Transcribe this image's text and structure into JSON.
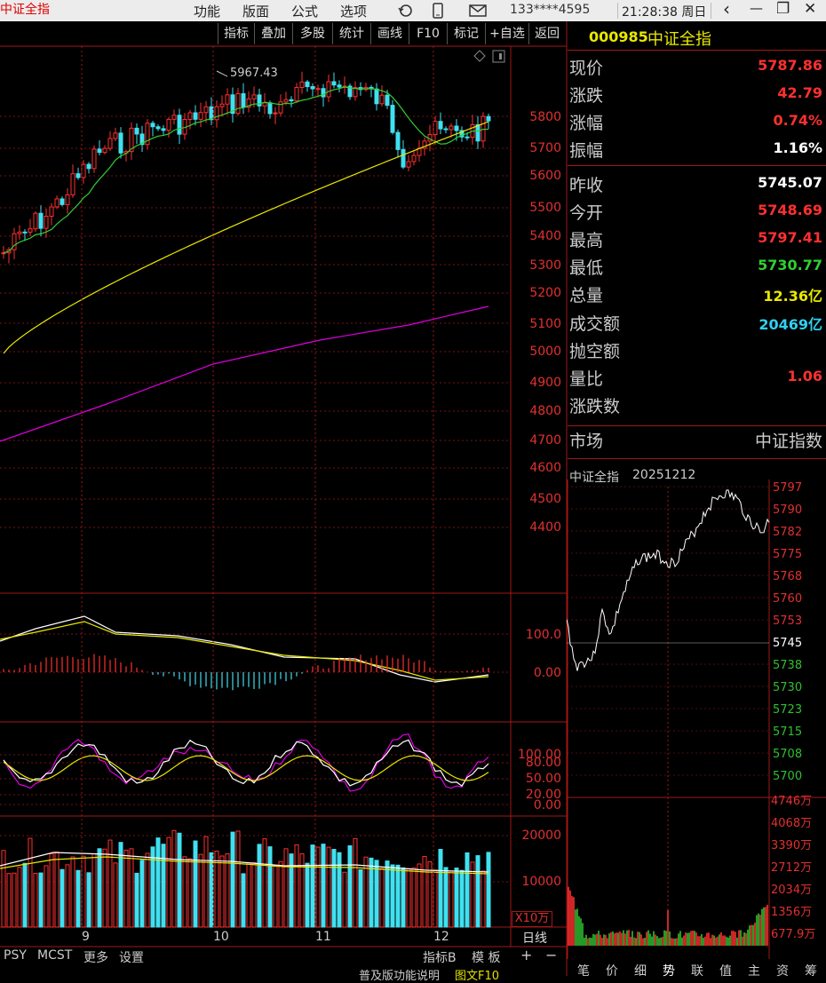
{
  "app": {
    "title": "中证全指",
    "menu": [
      "功能",
      "版面",
      "公式",
      "选项"
    ],
    "account": "133****4595",
    "clock": "21:28:38 周日",
    "window_controls": {
      "back": "‹",
      "min": "—",
      "restore": "❐",
      "close": "✕"
    }
  },
  "toolbar": [
    "指标",
    "叠加",
    "多股",
    "统计",
    "画线",
    "F10",
    "标记",
    "+自选",
    "返回"
  ],
  "chart": {
    "high_marker": "5967.43",
    "price_axis": [
      "5800",
      "5700",
      "5600",
      "5500",
      "5400",
      "5300",
      "5200",
      "5100",
      "5000",
      "4900",
      "4800",
      "4700",
      "4600",
      "4500",
      "4400"
    ],
    "macd_axis": [
      "100.0",
      "0.00"
    ],
    "kdj_axis": [
      "100.00",
      "80.00",
      "50.00",
      "20.00",
      "0.00"
    ],
    "vol_axis": [
      "20000",
      "10000"
    ],
    "vol_unit": "X10万",
    "period": "日线",
    "months": [
      "9",
      "10",
      "11",
      "12"
    ]
  },
  "quote": {
    "code": "000985",
    "name": "中证全指",
    "rows": [
      {
        "label": "现价",
        "value": "5787.86",
        "color": "#ff3030"
      },
      {
        "label": "涨跌",
        "value": "42.79",
        "color": "#ff3030"
      },
      {
        "label": "涨幅",
        "value": "0.74%",
        "color": "#ff3030"
      },
      {
        "label": "振幅",
        "value": "1.16%",
        "color": "#ffffff"
      },
      {
        "label": "昨收",
        "value": "5745.07",
        "color": "#ffffff"
      },
      {
        "label": "今开",
        "value": "5748.69",
        "color": "#ff3030"
      },
      {
        "label": "最高",
        "value": "5797.41",
        "color": "#ff3030"
      },
      {
        "label": "最低",
        "value": "5730.77",
        "color": "#30d030"
      },
      {
        "label": "总量",
        "value": "12.36亿",
        "color": "#e8e800"
      },
      {
        "label": "成交额",
        "value": "20469亿",
        "color": "#30d0f0"
      },
      {
        "label": "抛空额",
        "value": "",
        "color": "#ffffff"
      },
      {
        "label": "量比",
        "value": "1.06",
        "color": "#ff3030"
      },
      {
        "label": "涨跌数",
        "value": "",
        "color": "#ffffff"
      }
    ],
    "market_label": "市场",
    "market_value": "中证指数"
  },
  "intraday": {
    "title": "中证全指",
    "date": "20251212",
    "price_axis": [
      {
        "v": "5797",
        "c": "r"
      },
      {
        "v": "5790",
        "c": "r"
      },
      {
        "v": "5782",
        "c": "r"
      },
      {
        "v": "5775",
        "c": "r"
      },
      {
        "v": "5768",
        "c": "r"
      },
      {
        "v": "5760",
        "c": "r"
      },
      {
        "v": "5753",
        "c": "r"
      },
      {
        "v": "5745",
        "c": "w"
      },
      {
        "v": "5738",
        "c": "g"
      },
      {
        "v": "5730",
        "c": "g"
      },
      {
        "v": "5723",
        "c": "g"
      },
      {
        "v": "5715",
        "c": "g"
      },
      {
        "v": "5708",
        "c": "g"
      },
      {
        "v": "5700",
        "c": "g"
      }
    ],
    "vol_axis": [
      "4746万",
      "4068万",
      "3390万",
      "2712万",
      "2034万",
      "1356万",
      "677.9万"
    ],
    "tabs": [
      "笔",
      "价",
      "细",
      "势",
      "联",
      "值",
      "主",
      "资",
      "筹"
    ]
  },
  "bottom": {
    "left_tabs": [
      "PSY",
      "MCST",
      "更多",
      "设置"
    ],
    "indicator_btn": "指标B",
    "template_btn": "模 板",
    "plus": "+",
    "minus": "−",
    "status": "普及版功能说明",
    "status2": "图文F10"
  }
}
